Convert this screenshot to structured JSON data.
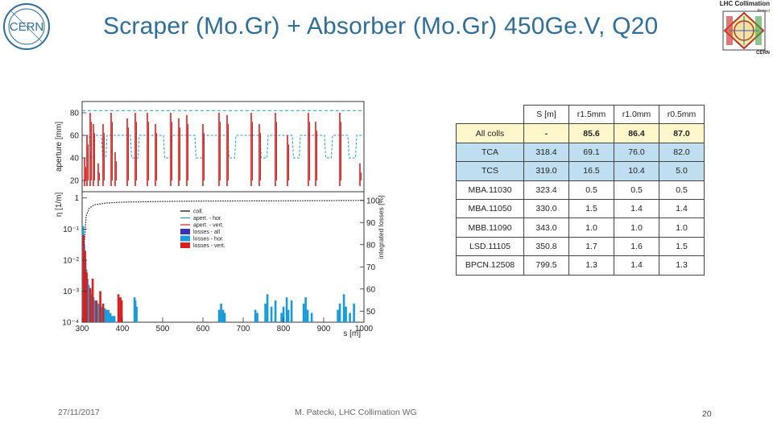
{
  "slide": {
    "title": "Scraper (Mo.Gr) + Absorber (Mo.Gr) 450Ge.V, Q20",
    "footer_date": "27/11/2017",
    "footer_center": "M. Patecki, LHC Collimation WG",
    "page_number": "20"
  },
  "logos": {
    "cern_text": "CERN",
    "lhc_title": "LHC Collimation",
    "lhc_subtitle": "Project",
    "lhc_cern": "CERN"
  },
  "chart_data": [
    {
      "type": "line",
      "ylabel": "aperture [mm]",
      "xlim": [
        300,
        1000
      ],
      "ylim": [
        10,
        90
      ],
      "yticks": [
        20,
        40,
        60,
        80
      ],
      "series": [
        {
          "color": "#1a9ad6",
          "line_y": 60,
          "drops": [
            [
              318,
              40
            ],
            [
              330,
              40
            ],
            [
              348,
              40
            ],
            [
              362,
              40
            ],
            [
              420,
              40
            ],
            [
              442,
              40
            ],
            [
              502,
              40
            ],
            [
              522,
              40
            ],
            [
              580,
              40
            ],
            [
              602,
              40
            ],
            [
              662,
              40
            ],
            [
              682,
              40
            ],
            [
              742,
              40
            ],
            [
              762,
              40
            ],
            [
              822,
              40
            ],
            [
              842,
              40
            ],
            [
              902,
              40
            ],
            [
              922,
              40
            ],
            [
              960,
              40
            ],
            [
              982,
              40
            ]
          ]
        },
        {
          "color": "#d62020",
          "spikes": [
            [
              306,
              40
            ],
            [
              312,
              60
            ],
            [
              320,
              80
            ],
            [
              328,
              70
            ],
            [
              340,
              35
            ],
            [
              352,
              70
            ],
            [
              372,
              80
            ],
            [
              382,
              45
            ],
            [
              412,
              75
            ],
            [
              432,
              80
            ],
            [
              462,
              80
            ],
            [
              482,
              70
            ],
            [
              520,
              80
            ],
            [
              540,
              75
            ],
            [
              560,
              78
            ],
            [
              600,
              70
            ],
            [
              640,
              80
            ],
            [
              660,
              78
            ],
            [
              720,
              80
            ],
            [
              740,
              70
            ],
            [
              780,
              80
            ],
            [
              810,
              60
            ],
            [
              862,
              80
            ],
            [
              880,
              72
            ],
            [
              940,
              80
            ],
            [
              990,
              35
            ]
          ]
        }
      ]
    },
    {
      "type": "bar",
      "ylabel": "η [1/m]",
      "y2label": "integrated losses [%]",
      "xlabel": "s [m]",
      "xlim": [
        300,
        1000
      ],
      "xticks": [
        300,
        400,
        500,
        600,
        700,
        800,
        900,
        1000
      ],
      "ylim_log": [
        -4,
        0.2
      ],
      "ytick_labels": [
        "1",
        "10⁻¹",
        "10⁻²",
        "10⁻³",
        "10⁻⁴"
      ],
      "y2ticks": [
        50,
        60,
        70,
        80,
        90,
        100
      ],
      "legend": {
        "position": "top-right",
        "entries": [
          {
            "label": "coll.",
            "color": "#000000",
            "kind": "line"
          },
          {
            "label": "apert. - hor.",
            "color": "#1a9ad6",
            "kind": "line"
          },
          {
            "label": "apert. - vert.",
            "color": "#d62020",
            "kind": "line"
          },
          {
            "label": "losses - all",
            "color": "#3c2fb5",
            "kind": "box"
          },
          {
            "label": "losses - hor.",
            "color": "#1a9ad6",
            "kind": "box"
          },
          {
            "label": "losses - vert.",
            "color": "#d62020",
            "kind": "box"
          }
        ]
      },
      "integrated_losses": [
        [
          305,
          80
        ],
        [
          310,
          93
        ],
        [
          318,
          96.5
        ],
        [
          330,
          98
        ],
        [
          360,
          98.8
        ],
        [
          400,
          99.2
        ],
        [
          500,
          99.5
        ],
        [
          600,
          99.7
        ],
        [
          800,
          99.8
        ],
        [
          1000,
          100
        ]
      ],
      "bars_hor": [
        [
          302,
          -0.9
        ],
        [
          305,
          -1.5
        ],
        [
          308,
          -2.0
        ],
        [
          310,
          -2.3
        ],
        [
          313,
          -2.6
        ],
        [
          316,
          -2.8
        ],
        [
          320,
          -3.0
        ],
        [
          324,
          -3.1
        ],
        [
          328,
          -3.2
        ],
        [
          332,
          -3.3
        ],
        [
          336,
          -3.35
        ],
        [
          340,
          -3.4
        ],
        [
          344,
          -3.45
        ],
        [
          348,
          -3.5
        ],
        [
          352,
          -3.5
        ],
        [
          356,
          -3.55
        ],
        [
          360,
          -3.6
        ],
        [
          365,
          -3.6
        ],
        [
          370,
          -3.7
        ],
        [
          375,
          -3.8
        ],
        [
          380,
          -3.8
        ],
        [
          430,
          -3.2
        ],
        [
          432,
          -3.3
        ],
        [
          435,
          -3.5
        ],
        [
          640,
          -3.6
        ],
        [
          645,
          -3.4
        ],
        [
          650,
          -3.6
        ],
        [
          654,
          -3.7
        ],
        [
          730,
          -3.6
        ],
        [
          735,
          -3.7
        ],
        [
          755,
          -3.4
        ],
        [
          760,
          -3.1
        ],
        [
          770,
          -3.5
        ],
        [
          780,
          -3.3
        ],
        [
          795,
          -3.7
        ],
        [
          800,
          -3.5
        ],
        [
          808,
          -3.2
        ],
        [
          812,
          -3.6
        ],
        [
          820,
          -3.3
        ],
        [
          850,
          -3.4
        ],
        [
          855,
          -3.2
        ],
        [
          860,
          -3.6
        ],
        [
          870,
          -3.7
        ],
        [
          935,
          -3.6
        ],
        [
          940,
          -3.4
        ],
        [
          950,
          -3.1
        ],
        [
          955,
          -3.5
        ],
        [
          965,
          -3.7
        ],
        [
          975,
          -3.4
        ]
      ],
      "bars_vert": [
        [
          303,
          -1.2
        ],
        [
          307,
          -1.7
        ],
        [
          311,
          -2.4
        ],
        [
          320,
          -2.9
        ],
        [
          326,
          -2.6
        ],
        [
          335,
          -3.3
        ],
        [
          345,
          -3.0
        ],
        [
          352,
          -3.4
        ],
        [
          390,
          -3.1
        ],
        [
          395,
          -3.2
        ],
        [
          398,
          -3.3
        ]
      ]
    }
  ],
  "table": {
    "headers": [
      "",
      "S [m]",
      "r1.5mm",
      "r1.0mm",
      "r0.5mm"
    ],
    "rows": [
      {
        "name": "All colls",
        "s": "-",
        "r15": "85.6",
        "r10": "86.4",
        "r05": "87.0",
        "style": "yellow-bold"
      },
      {
        "name": "TCA",
        "s": "318.4",
        "r15": "69.1",
        "r10": "76.0",
        "r05": "82.0",
        "style": "blue"
      },
      {
        "name": "TCS",
        "s": "319.0",
        "r15": "16.5",
        "r10": "10.4",
        "r05": "5.0",
        "style": "blue"
      },
      {
        "name": "MBA.11030",
        "s": "323.4",
        "r15": "0.5",
        "r10": "0.5",
        "r05": "0.5",
        "style": "white"
      },
      {
        "name": "MBA.11050",
        "s": "330.0",
        "r15": "1.5",
        "r10": "1.4",
        "r05": "1.4",
        "style": "white"
      },
      {
        "name": "MBB.11090",
        "s": "343.0",
        "r15": "1.0",
        "r10": "1.0",
        "r05": "1.0",
        "style": "white"
      },
      {
        "name": "LSD.11105",
        "s": "350.8",
        "r15": "1.7",
        "r10": "1.6",
        "r05": "1.5",
        "style": "white"
      },
      {
        "name": "BPCN.12508",
        "s": "799.5",
        "r15": "1.3",
        "r10": "1.4",
        "r05": "1.3",
        "style": "white"
      }
    ]
  },
  "colors": {
    "title": "#2f6e98",
    "hor": "#1a9ad6",
    "vert": "#d62020",
    "all": "#3c2fb5",
    "table_yellow": "#fff7cc",
    "table_blue": "#bfdff0"
  }
}
